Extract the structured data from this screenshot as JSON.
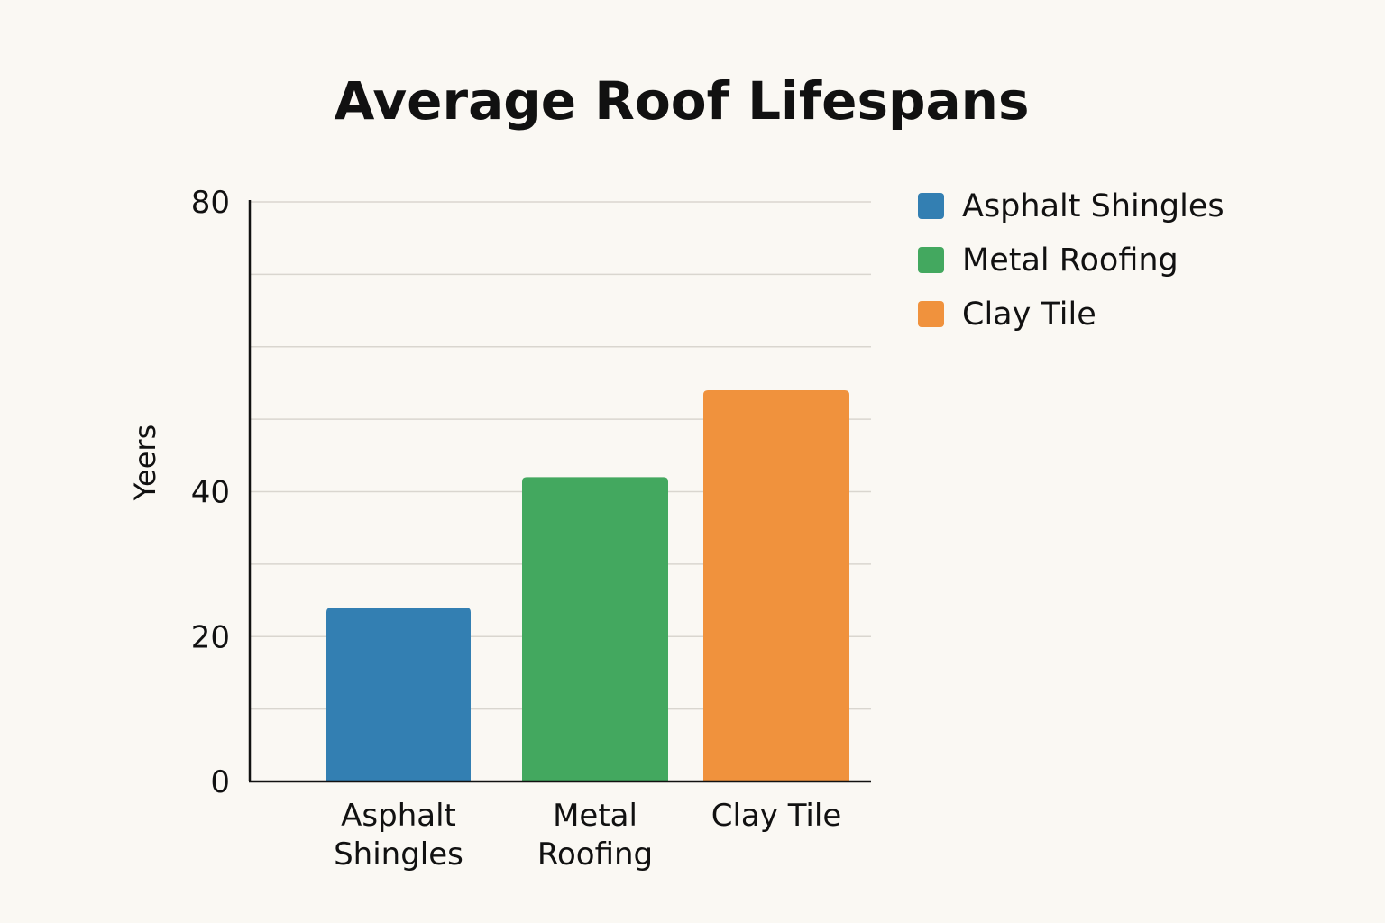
{
  "chart_data": {
    "type": "bar",
    "title": "Average Roof Lifespans",
    "ylabel": "Yeers",
    "xlabel": "",
    "categories": [
      "Asphalt Shingles",
      "Metal Roofing",
      "Clay Tile"
    ],
    "category_label_lines": [
      [
        "Asphalt",
        "Shingles"
      ],
      [
        "Metal",
        "Roofing"
      ],
      [
        "Clay Tile"
      ]
    ],
    "values": [
      24,
      42,
      54
    ],
    "colors": [
      "#337fb2",
      "#43a85f",
      "#f0923d"
    ],
    "ylim": [
      0,
      80
    ],
    "yticks": [
      0,
      20,
      40,
      80
    ],
    "gridlines": [
      10,
      20,
      30,
      40,
      50,
      60,
      70,
      80
    ],
    "grid": true,
    "legend": {
      "placement": "right",
      "entries": [
        "Asphalt Shingles",
        "Metal Roofing",
        "Clay Tile"
      ]
    }
  }
}
